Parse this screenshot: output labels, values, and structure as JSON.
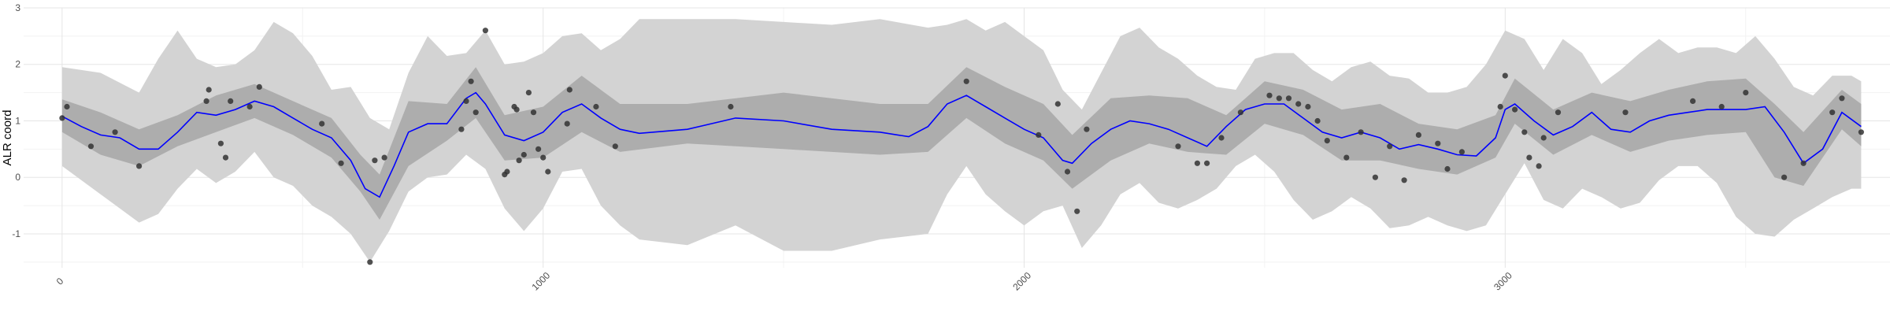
{
  "chart_data": {
    "type": "line",
    "title": "",
    "xlabel": "",
    "ylabel": "ALR coord",
    "xlim": [
      -80,
      3800
    ],
    "ylim": [
      -1.6,
      3
    ],
    "x_ticks": [
      0,
      1000,
      2000,
      3000
    ],
    "y_ticks": [
      -1,
      0,
      1,
      2,
      3
    ],
    "grid": true,
    "legend": "none",
    "colors": {
      "mean_line": "#0000ff",
      "inner_band": "#adadad",
      "outer_band": "#d3d3d3",
      "points": "#333333"
    },
    "mean_line": {
      "x": [
        0,
        40,
        80,
        120,
        160,
        200,
        240,
        280,
        320,
        360,
        400,
        440,
        480,
        520,
        560,
        600,
        630,
        660,
        690,
        720,
        760,
        800,
        840,
        860,
        880,
        920,
        960,
        1000,
        1040,
        1080,
        1120,
        1160,
        1200,
        1300,
        1400,
        1500,
        1600,
        1700,
        1760,
        1800,
        1840,
        1880,
        1920,
        1960,
        2000,
        2040,
        2080,
        2100,
        2140,
        2180,
        2220,
        2260,
        2300,
        2340,
        2380,
        2420,
        2460,
        2500,
        2540,
        2580,
        2620,
        2660,
        2700,
        2740,
        2780,
        2820,
        2860,
        2900,
        2940,
        2980,
        3000,
        3020,
        3060,
        3100,
        3140,
        3180,
        3220,
        3260,
        3300,
        3340,
        3380,
        3420,
        3460,
        3500,
        3540,
        3580,
        3620,
        3660,
        3700,
        3740
      ],
      "y": [
        1.08,
        0.9,
        0.75,
        0.7,
        0.5,
        0.5,
        0.8,
        1.15,
        1.1,
        1.2,
        1.35,
        1.25,
        1.05,
        0.85,
        0.7,
        0.3,
        -0.2,
        -0.35,
        0.2,
        0.8,
        0.95,
        0.95,
        1.4,
        1.5,
        1.3,
        0.75,
        0.65,
        0.8,
        1.15,
        1.3,
        1.05,
        0.85,
        0.78,
        0.85,
        1.05,
        1.0,
        0.85,
        0.8,
        0.72,
        0.9,
        1.3,
        1.45,
        1.25,
        1.05,
        0.85,
        0.7,
        0.3,
        0.25,
        0.6,
        0.85,
        1.0,
        0.95,
        0.85,
        0.7,
        0.55,
        0.9,
        1.2,
        1.3,
        1.3,
        1.05,
        0.8,
        0.7,
        0.8,
        0.7,
        0.5,
        0.58,
        0.5,
        0.4,
        0.38,
        0.7,
        1.2,
        1.3,
        1.0,
        0.75,
        0.9,
        1.15,
        0.85,
        0.8,
        1.0,
        1.1,
        1.15,
        1.2,
        1.2,
        1.2,
        1.25,
        0.8,
        0.25,
        0.5,
        1.15,
        0.9
      ]
    },
    "inner_band": {
      "x": [
        0,
        80,
        160,
        240,
        320,
        400,
        480,
        560,
        620,
        660,
        720,
        800,
        860,
        920,
        1000,
        1080,
        1160,
        1300,
        1500,
        1700,
        1800,
        1880,
        1960,
        2040,
        2100,
        2180,
        2260,
        2340,
        2420,
        2500,
        2580,
        2660,
        2740,
        2820,
        2900,
        2980,
        3020,
        3100,
        3180,
        3260,
        3340,
        3420,
        3500,
        3560,
        3620,
        3700,
        3740
      ],
      "lower": [
        0.8,
        0.4,
        0.2,
        0.55,
        0.8,
        1.05,
        0.75,
        0.35,
        -0.25,
        -0.75,
        0.2,
        0.65,
        1.05,
        0.3,
        0.35,
        0.8,
        0.45,
        0.6,
        0.5,
        0.4,
        0.45,
        1.05,
        0.6,
        0.3,
        -0.2,
        0.3,
        0.6,
        0.45,
        0.4,
        0.95,
        0.75,
        0.3,
        0.3,
        0.15,
        0.05,
        0.35,
        0.95,
        0.4,
        0.75,
        0.45,
        0.65,
        0.75,
        0.8,
        0.0,
        -0.15,
        0.85,
        0.55
      ],
      "upper": [
        1.38,
        1.15,
        0.85,
        1.1,
        1.45,
        1.65,
        1.35,
        1.05,
        0.4,
        0.05,
        1.35,
        1.3,
        1.95,
        1.1,
        1.25,
        1.8,
        1.3,
        1.3,
        1.5,
        1.3,
        1.3,
        1.95,
        1.6,
        1.3,
        0.75,
        1.4,
        1.45,
        1.4,
        1.1,
        1.7,
        1.55,
        1.2,
        1.3,
        0.95,
        0.85,
        1.1,
        1.75,
        1.2,
        1.5,
        1.35,
        1.55,
        1.7,
        1.75,
        1.3,
        0.8,
        1.55,
        1.3
      ]
    },
    "outer_band": {
      "x": [
        0,
        80,
        160,
        200,
        240,
        280,
        320,
        360,
        400,
        440,
        480,
        520,
        560,
        600,
        640,
        680,
        720,
        760,
        800,
        840,
        880,
        920,
        960,
        1000,
        1040,
        1080,
        1120,
        1160,
        1200,
        1300,
        1400,
        1500,
        1600,
        1700,
        1800,
        1840,
        1880,
        1920,
        1960,
        2000,
        2040,
        2080,
        2120,
        2160,
        2200,
        2240,
        2280,
        2320,
        2360,
        2400,
        2440,
        2480,
        2520,
        2560,
        2600,
        2640,
        2680,
        2720,
        2760,
        2800,
        2840,
        2880,
        2920,
        2960,
        3000,
        3040,
        3080,
        3120,
        3160,
        3200,
        3240,
        3280,
        3320,
        3360,
        3400,
        3440,
        3480,
        3520,
        3560,
        3600,
        3640,
        3680,
        3720,
        3740
      ],
      "lower": [
        0.2,
        -0.3,
        -0.8,
        -0.65,
        -0.2,
        0.15,
        -0.1,
        0.1,
        0.45,
        0.0,
        -0.15,
        -0.5,
        -0.7,
        -1.0,
        -1.5,
        -0.95,
        -0.25,
        0.0,
        0.05,
        0.4,
        0.15,
        -0.55,
        -0.95,
        -0.55,
        0.1,
        0.15,
        -0.5,
        -0.85,
        -1.1,
        -1.2,
        -0.85,
        -1.3,
        -1.3,
        -1.1,
        -1.0,
        -0.3,
        0.2,
        -0.3,
        -0.6,
        -0.85,
        -0.6,
        -0.5,
        -1.25,
        -0.85,
        -0.3,
        -0.1,
        -0.45,
        -0.55,
        -0.4,
        -0.2,
        0.2,
        0.4,
        0.1,
        -0.4,
        -0.75,
        -0.6,
        -0.35,
        -0.55,
        -0.9,
        -0.85,
        -0.7,
        -0.85,
        -0.95,
        -0.85,
        -0.3,
        0.25,
        -0.4,
        -0.55,
        -0.2,
        -0.35,
        -0.55,
        -0.45,
        -0.05,
        0.2,
        0.2,
        -0.1,
        -0.7,
        -1.0,
        -1.05,
        -0.75,
        -0.55,
        -0.35,
        -0.2,
        -0.2
      ],
      "upper": [
        1.95,
        1.85,
        1.5,
        2.1,
        2.6,
        2.1,
        1.95,
        2.0,
        2.25,
        2.75,
        2.55,
        2.15,
        1.55,
        1.6,
        1.05,
        0.85,
        1.85,
        2.5,
        2.15,
        2.2,
        2.6,
        2.0,
        2.05,
        2.2,
        2.5,
        2.55,
        2.25,
        2.45,
        2.8,
        2.8,
        2.8,
        2.75,
        2.7,
        2.8,
        2.65,
        2.7,
        2.8,
        2.6,
        2.75,
        2.5,
        2.25,
        1.55,
        1.2,
        1.85,
        2.5,
        2.65,
        2.3,
        2.1,
        1.8,
        1.6,
        1.55,
        2.1,
        2.2,
        2.2,
        1.9,
        1.7,
        1.95,
        2.05,
        1.8,
        1.75,
        1.5,
        1.5,
        1.6,
        2.0,
        2.6,
        2.45,
        1.9,
        2.45,
        2.2,
        1.65,
        1.9,
        2.2,
        2.45,
        2.2,
        2.3,
        2.3,
        2.2,
        2.5,
        2.1,
        1.6,
        1.45,
        1.8,
        1.8,
        1.7
      ]
    },
    "points": {
      "x": [
        0,
        10,
        60,
        110,
        160,
        300,
        305,
        330,
        340,
        350,
        390,
        410,
        540,
        580,
        640,
        650,
        670,
        830,
        840,
        850,
        860,
        880,
        920,
        925,
        940,
        945,
        950,
        960,
        970,
        980,
        990,
        1000,
        1010,
        1050,
        1055,
        1110,
        1150,
        1390,
        1880,
        2030,
        2070,
        2090,
        2110,
        2130,
        2320,
        2360,
        2380,
        2410,
        2450,
        2510,
        2530,
        2550,
        2570,
        2590,
        2610,
        2630,
        2670,
        2700,
        2730,
        2760,
        2790,
        2820,
        2860,
        2880,
        2910,
        2990,
        3000,
        3020,
        3040,
        3050,
        3070,
        3080,
        3110,
        3250,
        3390,
        3450,
        3500,
        3580,
        3620,
        3680,
        3700,
        3740
      ],
      "y": [
        1.05,
        1.25,
        0.55,
        0.8,
        0.2,
        1.35,
        1.55,
        0.6,
        0.35,
        1.35,
        1.25,
        1.6,
        0.95,
        0.25,
        -1.5,
        0.3,
        0.35,
        0.85,
        1.35,
        1.7,
        1.15,
        2.6,
        0.05,
        0.1,
        1.25,
        1.2,
        0.3,
        0.4,
        1.5,
        1.15,
        0.5,
        0.35,
        0.1,
        0.95,
        1.55,
        1.25,
        0.55,
        1.25,
        1.7,
        0.75,
        1.3,
        0.1,
        -0.6,
        0.85,
        0.55,
        0.25,
        0.25,
        0.7,
        1.15,
        1.45,
        1.4,
        1.4,
        1.3,
        1.25,
        1.0,
        0.65,
        0.35,
        0.8,
        0.0,
        0.55,
        -0.05,
        0.75,
        0.6,
        0.15,
        0.45,
        1.25,
        1.8,
        1.2,
        0.8,
        0.35,
        0.2,
        0.7,
        1.15,
        1.15,
        1.35,
        1.25,
        1.5,
        0.0,
        0.25,
        1.15,
        1.4,
        0.8
      ]
    }
  }
}
